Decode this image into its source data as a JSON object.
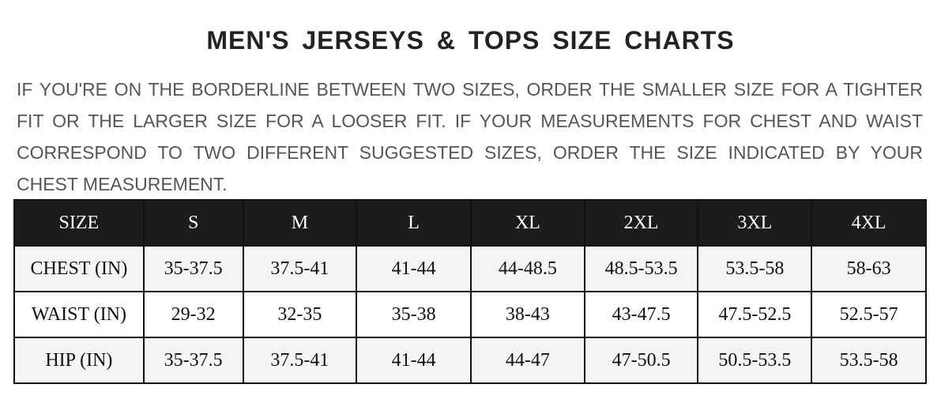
{
  "title": "MEN'S JERSEYS & TOPS SIZE CHARTS",
  "description": "IF YOU'RE ON THE BORDERLINE BETWEEN TWO SIZES, ORDER THE SMALLER SIZE FOR A TIGHTER FIT OR THE LARGER SIZE FOR A LOOSER FIT. IF YOUR MEASUREMENTS FOR CHEST AND WAIST CORRESPOND TO TWO DIFFERENT SUGGESTED SIZES, ORDER THE SIZE INDICATED BY YOUR CHEST MEASUREMENT.",
  "colors": {
    "header_bg": "#1c1c1c",
    "row_alt_bg": "#f3f4f6"
  },
  "table": {
    "headers": [
      "SIZE",
      "S",
      "M",
      "L",
      "XL",
      "2XL",
      "3XL",
      "4XL"
    ],
    "rows": [
      [
        "CHEST (IN)",
        "35-37.5",
        "37.5-41",
        "41-44",
        "44-48.5",
        "48.5-53.5",
        "53.5-58",
        "58-63"
      ],
      [
        "WAIST (IN)",
        "29-32",
        "32-35",
        "35-38",
        "38-43",
        "43-47.5",
        "47.5-52.5",
        "52.5-57"
      ],
      [
        "HIP (IN)",
        "35-37.5",
        "37.5-41",
        "41-44",
        "44-47",
        "47-50.5",
        "50.5-53.5",
        "53.5-58"
      ]
    ]
  }
}
